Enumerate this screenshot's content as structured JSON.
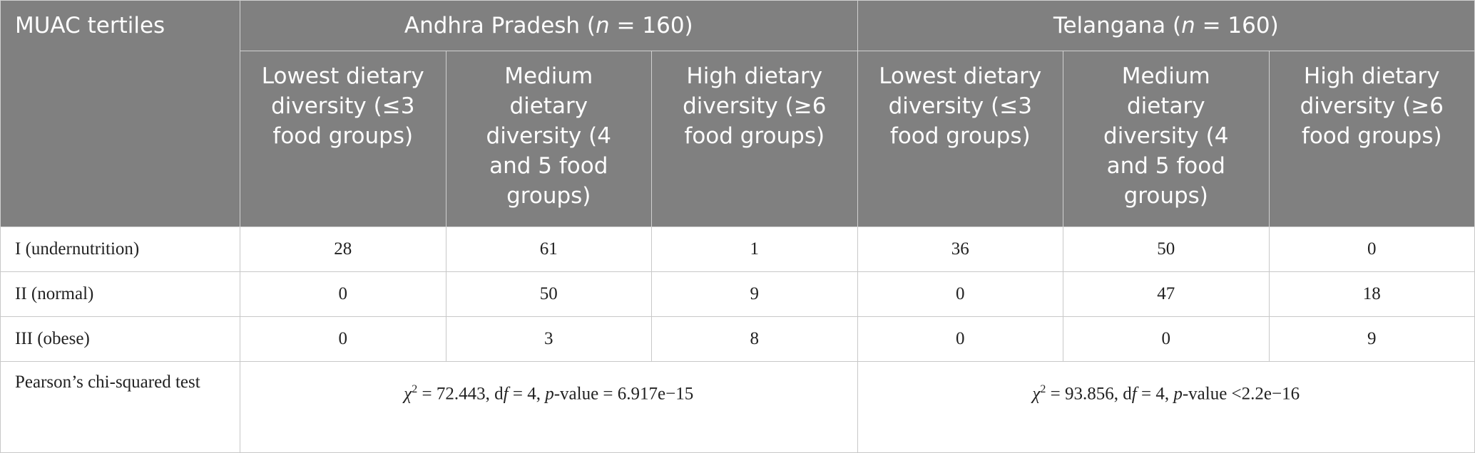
{
  "table": {
    "header": {
      "corner": "MUAC tertiles",
      "groups": [
        [
          "Andhra Pradesh (",
          "n",
          " = 160)"
        ],
        [
          "Telangana (",
          "n",
          " = 160)"
        ]
      ],
      "columns": [
        "Lowest dietary diversity (≤3 food groups)",
        "Medium dietary diversity (4 and 5 food groups)",
        "High dietary diversity (≥6 food groups)",
        "Lowest dietary diversity (≤3 food groups)",
        "Medium dietary diversity (4 and 5 food groups)",
        "High dietary diversity (≥6 food groups)"
      ]
    },
    "rows": [
      {
        "label": "I (undernutrition)",
        "values": [
          28,
          61,
          1,
          36,
          50,
          0
        ]
      },
      {
        "label": "II (normal)",
        "values": [
          0,
          50,
          9,
          0,
          47,
          18
        ]
      },
      {
        "label": "III (obese)",
        "values": [
          0,
          3,
          8,
          0,
          0,
          9
        ]
      }
    ],
    "test": {
      "label": "Pearson’s chi-squared test",
      "results": [
        [
          "χ",
          "2",
          " = 72.443, d",
          "f",
          " = 4, ",
          "p",
          "-value = 6.917e−15"
        ],
        [
          "χ",
          "2",
          " = 93.856, d",
          "f",
          " = 4, ",
          "p",
          "-value <2.2e−16"
        ]
      ]
    }
  }
}
